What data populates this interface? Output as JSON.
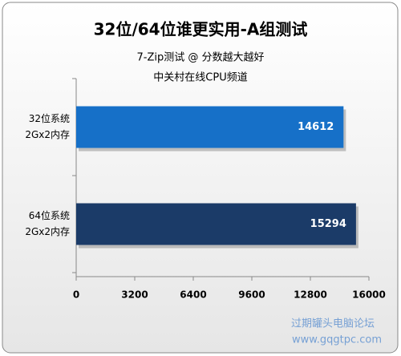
{
  "chart_data": {
    "type": "hbar",
    "title": "32位/64位谁更实用-A组测试",
    "subtitle": "7-Zip测试 @ 分数越大越好",
    "source": "中关村在线CPU频道",
    "categories": [
      [
        "32位系统",
        "2Gx2内存"
      ],
      [
        "64位系统",
        "2Gx2内存"
      ]
    ],
    "values": [
      14612,
      15294
    ],
    "colors": [
      "#1670c8",
      "#1b3b68"
    ],
    "xlim": [
      0,
      16000
    ],
    "xticks": [
      0,
      3200,
      6400,
      9600,
      12800,
      16000
    ],
    "grid": false,
    "watermark": [
      "过期罐头电脑论坛",
      "www.gqgtpc.com"
    ]
  }
}
